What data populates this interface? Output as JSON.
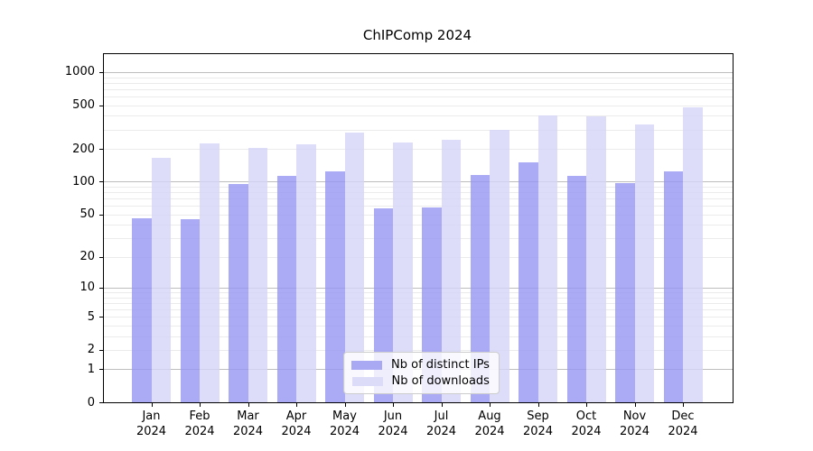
{
  "figure": {
    "title": "ChIPComp 2024",
    "background_color": "#ffffff"
  },
  "chart_data": {
    "type": "bar",
    "title": "ChIPComp 2024",
    "categories": [
      "Jan 2024",
      "Feb 2024",
      "Mar 2024",
      "Apr 2024",
      "May 2024",
      "Jun 2024",
      "Jul 2024",
      "Aug 2024",
      "Sep 2024",
      "Oct 2024",
      "Nov 2024",
      "Dec 2024"
    ],
    "x_tick_months": [
      "Jan",
      "Feb",
      "Mar",
      "Apr",
      "May",
      "Jun",
      "Jul",
      "Aug",
      "Sep",
      "Oct",
      "Nov",
      "Dec"
    ],
    "x_tick_year": "2024",
    "series": [
      {
        "name": "Nb of distinct IPs",
        "color": "#a9a9f3",
        "color_rgba": "rgba(150,150,242,0.8)",
        "values": [
          46,
          45,
          95,
          114,
          125,
          57,
          58,
          115,
          150,
          114,
          97,
          124
        ]
      },
      {
        "name": "Nb of downloads",
        "color": "#dcdcf9",
        "color_rgba": "rgba(212,212,247,0.8)",
        "values": [
          165,
          225,
          203,
          220,
          280,
          228,
          240,
          300,
          405,
          395,
          335,
          475
        ]
      }
    ],
    "y_scale": "log1p",
    "y_ticks": [
      0,
      1,
      2,
      5,
      10,
      20,
      50,
      100,
      200,
      500,
      1000
    ],
    "y_major_gridlines": [
      1,
      10,
      100,
      1000
    ],
    "ylim": [
      0,
      1450
    ],
    "grid": true,
    "legend_position": "bottom-center"
  }
}
